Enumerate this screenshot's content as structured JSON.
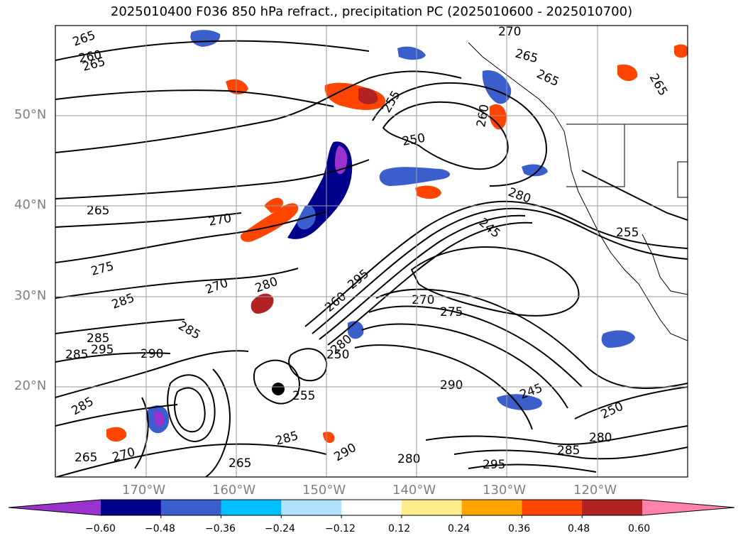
{
  "title": "2025010400 F036 850 hPa refract., precipitation PC (2025010600 - 2025010700)",
  "lat_labels": [
    "50°N",
    "40°N",
    "30°N",
    "20°N"
  ],
  "lon_labels": [
    "170°W",
    "160°W",
    "150°W",
    "140°W",
    "130°W",
    "120°W"
  ],
  "contour_labels": [
    "265",
    "260",
    "265",
    "270",
    "265",
    "265",
    "265",
    "255",
    "250",
    "260",
    "280",
    "265",
    "270",
    "275",
    "285",
    "280",
    "270",
    "285",
    "290",
    "285",
    "285",
    "295",
    "260",
    "275",
    "270",
    "295",
    "250",
    "280",
    "290",
    "245",
    "285",
    "255",
    "285",
    "290",
    "295",
    "280",
    "265",
    "270",
    "285",
    "255",
    "265",
    "250",
    "280",
    "245"
  ],
  "colorbar": {
    "tick_labels": [
      "−0.60",
      "−0.48",
      "−0.36",
      "−0.24",
      "−0.12",
      "0.12",
      "0.24",
      "0.36",
      "0.48",
      "0.60"
    ],
    "colors": [
      "#9a32cd",
      "#00008b",
      "#3a5fcd",
      "#00bfff",
      "#b0e2ff",
      "#ffffff",
      "#ffec8b",
      "#ffa500",
      "#ff4500",
      "#b22222",
      "#ff82ab"
    ]
  }
}
